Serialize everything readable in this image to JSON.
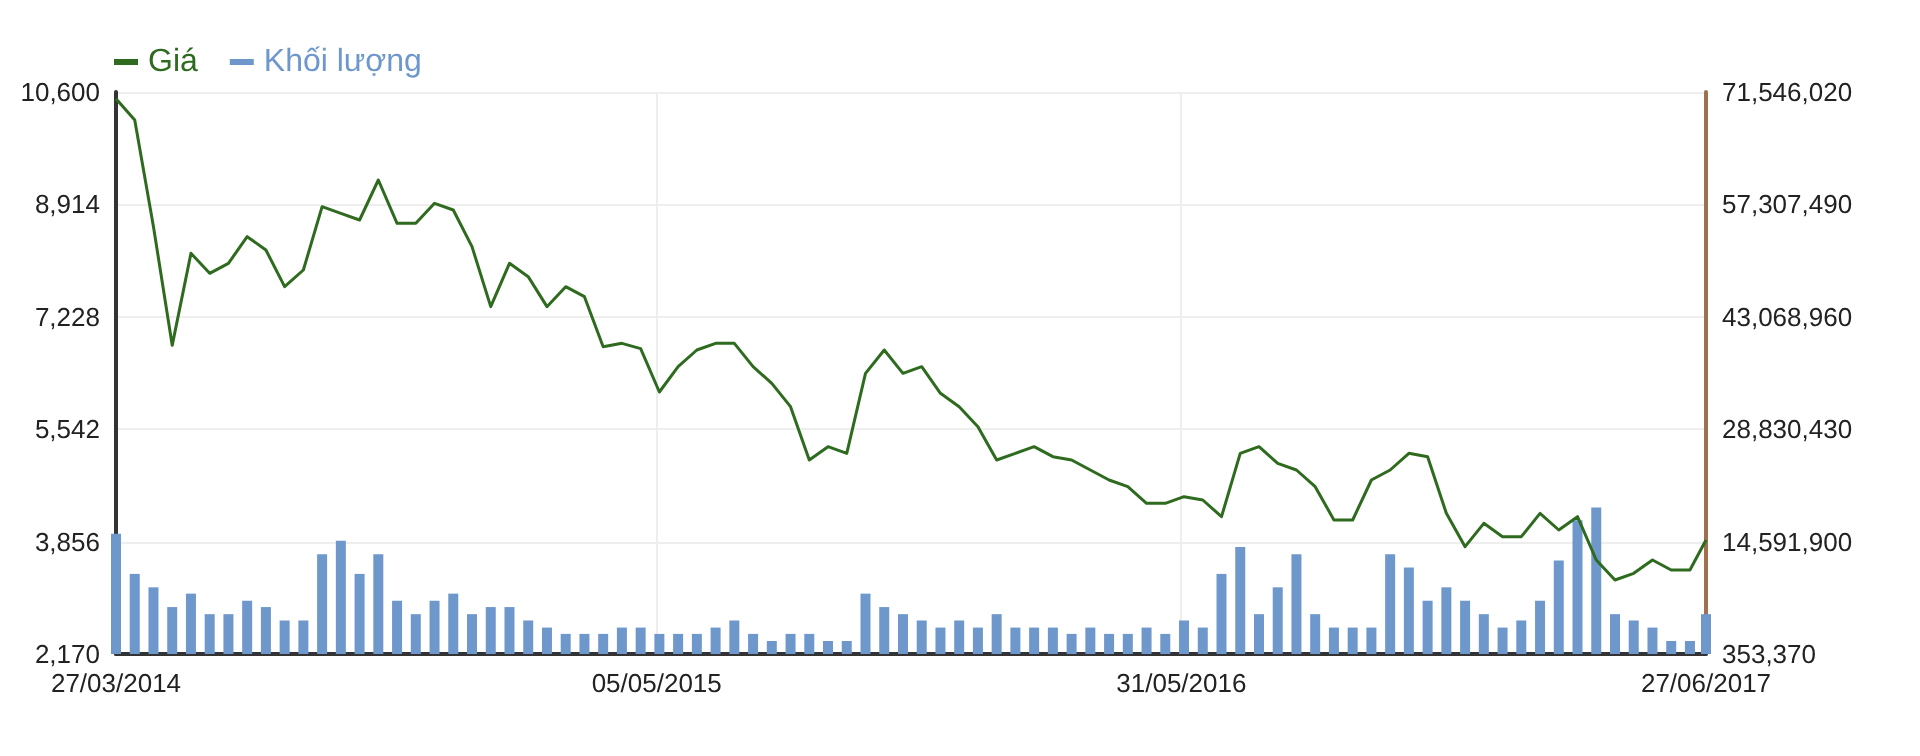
{
  "chart_data": {
    "type": "line",
    "x": [
      "2014-03-27",
      "2014-04-10",
      "2014-04-24",
      "2014-05-08",
      "2014-05-22",
      "2014-06-05",
      "2014-06-19",
      "2014-07-03",
      "2014-07-17",
      "2014-07-31",
      "2014-08-14",
      "2014-08-28",
      "2014-09-11",
      "2014-09-25",
      "2014-10-09",
      "2014-10-23",
      "2014-11-06",
      "2014-11-20",
      "2014-12-04",
      "2014-12-18",
      "2015-01-01",
      "2015-01-15",
      "2015-01-29",
      "2015-02-12",
      "2015-02-26",
      "2015-03-12",
      "2015-03-26",
      "2015-04-09",
      "2015-04-23",
      "2015-05-07",
      "2015-05-21",
      "2015-06-04",
      "2015-06-18",
      "2015-07-02",
      "2015-07-16",
      "2015-07-30",
      "2015-08-13",
      "2015-08-27",
      "2015-09-10",
      "2015-09-24",
      "2015-10-08",
      "2015-10-22",
      "2015-11-05",
      "2015-11-19",
      "2015-12-03",
      "2015-12-17",
      "2015-12-31",
      "2016-01-14",
      "2016-01-28",
      "2016-02-11",
      "2016-02-25",
      "2016-03-10",
      "2016-03-24",
      "2016-04-07",
      "2016-04-21",
      "2016-05-05",
      "2016-05-19",
      "2016-06-02",
      "2016-06-16",
      "2016-06-30",
      "2016-07-14",
      "2016-07-28",
      "2016-08-11",
      "2016-08-25",
      "2016-09-08",
      "2016-09-22",
      "2016-10-06",
      "2016-10-20",
      "2016-11-03",
      "2016-11-17",
      "2016-12-01",
      "2016-12-15",
      "2016-12-29",
      "2017-01-12",
      "2017-01-26",
      "2017-02-09",
      "2017-02-23",
      "2017-03-09",
      "2017-03-23",
      "2017-04-06",
      "2017-04-20",
      "2017-05-04",
      "2017-05-18",
      "2017-06-01",
      "2017-06-15",
      "2017-06-27"
    ],
    "series": [
      {
        "name": "Giá",
        "color": "#2e6b1e",
        "values": [
          10500,
          10180,
          8580,
          6800,
          8180,
          7880,
          8030,
          8430,
          8230,
          7680,
          7930,
          8880,
          8780,
          8680,
          9280,
          8630,
          8630,
          8930,
          8830,
          8280,
          7380,
          8030,
          7830,
          7380,
          7680,
          7530,
          6780,
          6830,
          6750,
          6100,
          6480,
          6730,
          6830,
          6830,
          6480,
          6230,
          5880,
          5080,
          5280,
          5180,
          6380,
          6730,
          6380,
          6480,
          6080,
          5880,
          5580,
          5080,
          5180,
          5280,
          5130,
          5080,
          4930,
          4780,
          4680,
          4430,
          4430,
          4530,
          4480,
          4230,
          5180,
          5280,
          5030,
          4930,
          4680,
          4180,
          4180,
          4780,
          4930,
          5180,
          5130,
          4280,
          3780,
          4130,
          3930,
          3930,
          4280,
          4030,
          4230,
          3580,
          3280,
          3380,
          3580,
          3430,
          3430,
          3880
        ]
      },
      {
        "name": "Khối lượng",
        "type": "bar",
        "axis": "y2",
        "color": "#6e98cc",
        "values": [
          15600000,
          10500000,
          8800000,
          6300000,
          8000000,
          5400000,
          5400000,
          7100000,
          6300000,
          4600000,
          4600000,
          13000000,
          14700000,
          10500000,
          13000000,
          7100000,
          5400000,
          7100000,
          8000000,
          5400000,
          6300000,
          6300000,
          4600000,
          3700000,
          2900000,
          2900000,
          2900000,
          3700000,
          3700000,
          2900000,
          2900000,
          2900000,
          3700000,
          4600000,
          2900000,
          2000000,
          2900000,
          2900000,
          2000000,
          2000000,
          8000000,
          6300000,
          5400000,
          4600000,
          3700000,
          4600000,
          3700000,
          5400000,
          3700000,
          3700000,
          3700000,
          2900000,
          3700000,
          2900000,
          2900000,
          3700000,
          2900000,
          4600000,
          3700000,
          10500000,
          13900000,
          5400000,
          8800000,
          13000000,
          5400000,
          3700000,
          3700000,
          3700000,
          13000000,
          11300000,
          7100000,
          8800000,
          7100000,
          5400000,
          3700000,
          4600000,
          7100000,
          12200000,
          17300000,
          18900000,
          5400000,
          4600000,
          3700000,
          2000000,
          2000000,
          5400000
        ]
      }
    ],
    "xlim": [
      "2014-03-27",
      "2017-06-27"
    ],
    "xticks": [
      {
        "value": "2014-03-27",
        "label": "27/03/2014"
      },
      {
        "value": "2015-05-05",
        "label": "05/05/2015"
      },
      {
        "value": "2016-05-31",
        "label": "31/05/2016"
      },
      {
        "value": "2017-06-27",
        "label": "27/06/2017"
      }
    ],
    "ylim": [
      2170,
      10600
    ],
    "yticks": [
      {
        "value": 2170,
        "label": "2,170"
      },
      {
        "value": 3856,
        "label": "3,856"
      },
      {
        "value": 5542,
        "label": "5,542"
      },
      {
        "value": 7228,
        "label": "7,228"
      },
      {
        "value": 8914,
        "label": "8,914"
      },
      {
        "value": 10600,
        "label": "10,600"
      }
    ],
    "y2lim": [
      353370,
      71546020
    ],
    "y2ticks": [
      {
        "value": 353370,
        "label": "353,370"
      },
      {
        "value": 14591900,
        "label": "14,591,900"
      },
      {
        "value": 28830430,
        "label": "28,830,430"
      },
      {
        "value": 43068960,
        "label": "43,068,960"
      },
      {
        "value": 57307490,
        "label": "57,307,490"
      },
      {
        "value": 71546020,
        "label": "71,546,020"
      }
    ],
    "grid": true,
    "legend": "top left"
  }
}
